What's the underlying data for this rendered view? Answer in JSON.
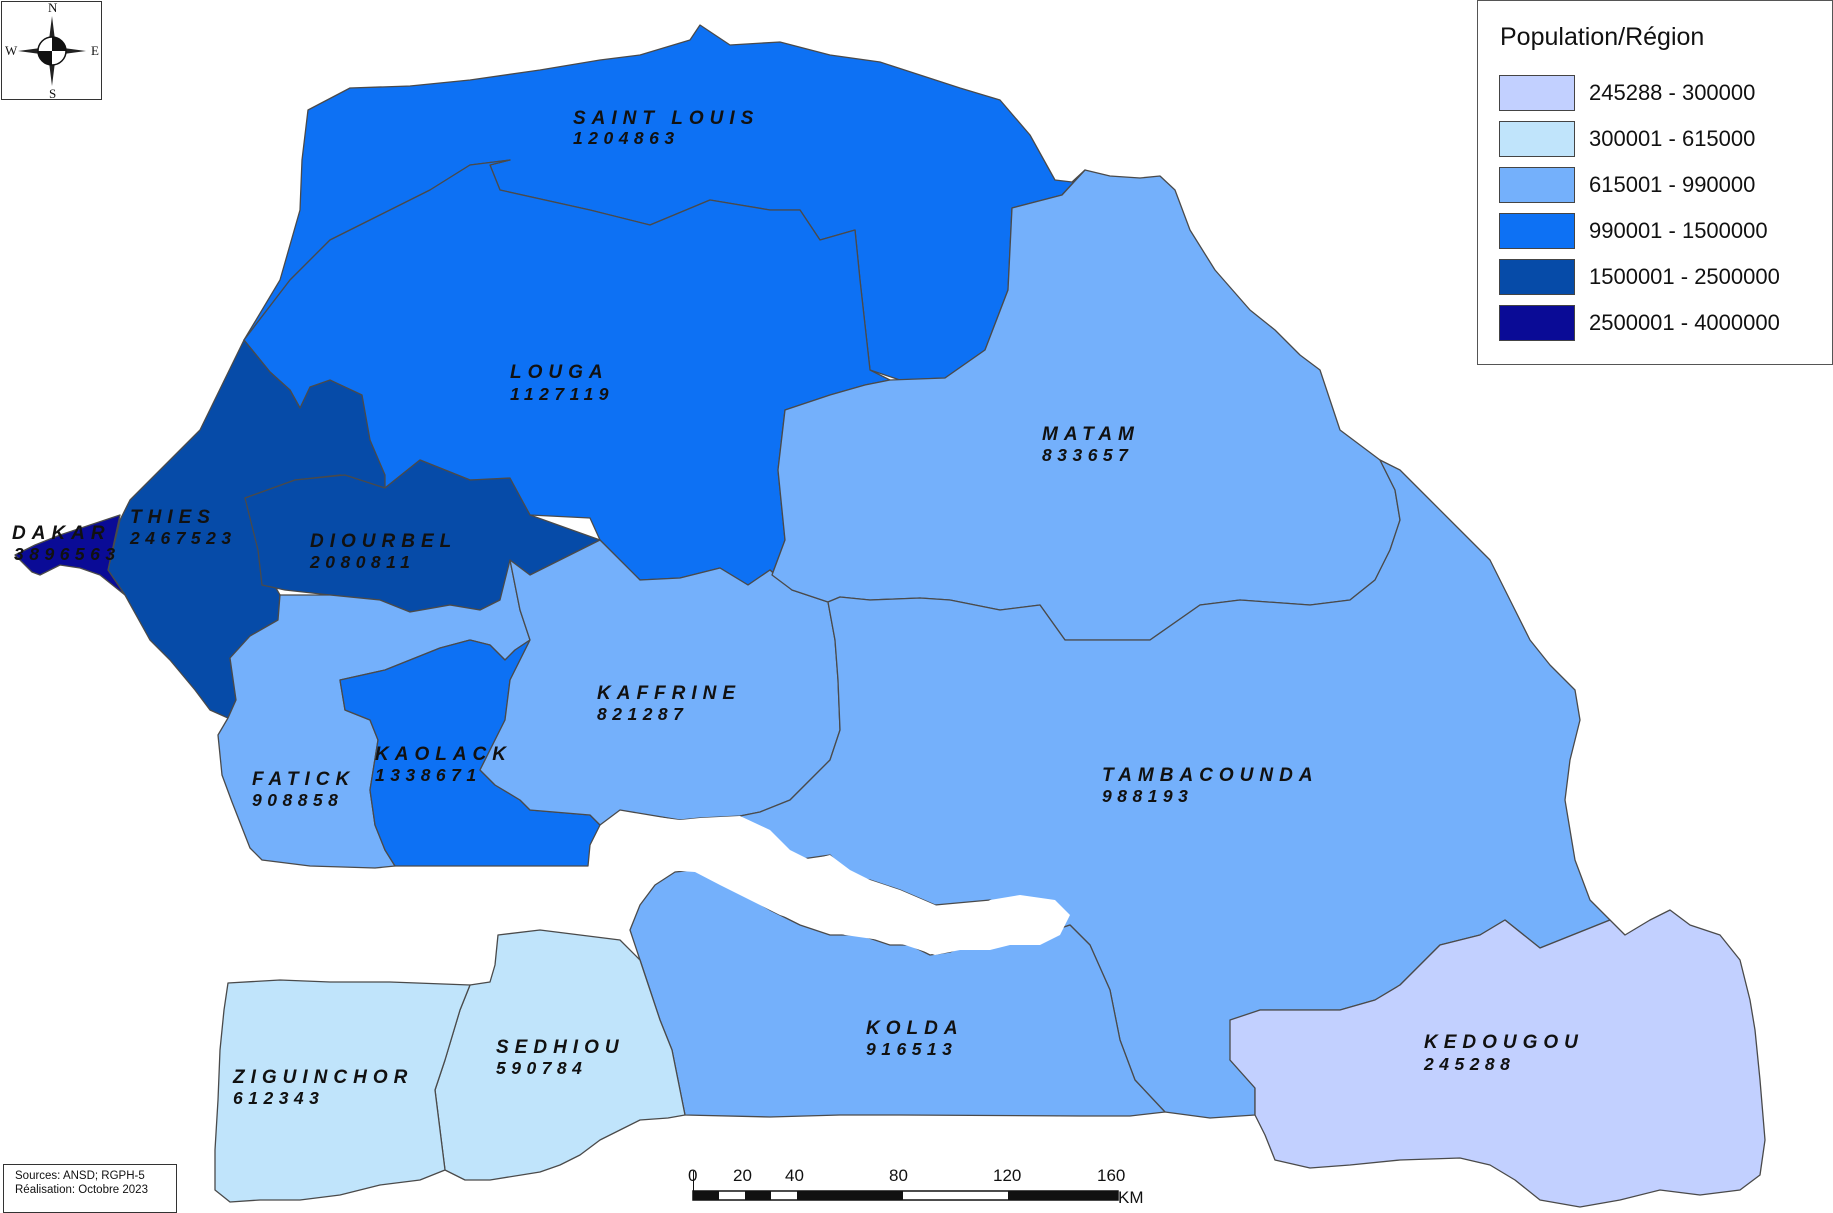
{
  "compass": {
    "north": "N",
    "south": "S",
    "east": "E",
    "west": "W"
  },
  "legend": {
    "title": "Population/Région",
    "classes": [
      {
        "label": "245288 - 300000",
        "color": "#c2d0ff"
      },
      {
        "label": "300001 - 615000",
        "color": "#c0e4fb"
      },
      {
        "label": "615001 - 990000",
        "color": "#74b0fb"
      },
      {
        "label": "990001 - 1500000",
        "color": "#0d71f4"
      },
      {
        "label": "1500001 - 2500000",
        "color": "#064ba8"
      },
      {
        "label": "2500001 - 4000000",
        "color": "#0a0b96"
      }
    ]
  },
  "regions": {
    "saint_louis": {
      "name": "SAINT LOUIS",
      "population": "1204863",
      "color": "#0d71f4"
    },
    "louga": {
      "name": "LOUGA",
      "population": "1127119",
      "color": "#0d71f4"
    },
    "matam": {
      "name": "MATAM",
      "population": "833657",
      "color": "#74b0fb"
    },
    "thies": {
      "name": "THIES",
      "population": "2467523",
      "color": "#064ba8"
    },
    "dakar": {
      "name": "DAKAR",
      "population": "3896563",
      "color": "#0a0b96"
    },
    "diourbel": {
      "name": "DIOURBEL",
      "population": "2080811",
      "color": "#064ba8"
    },
    "kaffrine": {
      "name": "KAFFRINE",
      "population": "821287",
      "color": "#74b0fb"
    },
    "kaolack": {
      "name": "KAOLACK",
      "population": "1338671",
      "color": "#0d71f4"
    },
    "fatick": {
      "name": "FATICK",
      "population": "908858",
      "color": "#74b0fb"
    },
    "tambacounda": {
      "name": "TAMBACOUNDA",
      "population": "988193",
      "color": "#74b0fb"
    },
    "kolda": {
      "name": "KOLDA",
      "population": "916513",
      "color": "#74b0fb"
    },
    "sedhiou": {
      "name": "SEDHIOU",
      "population": "590784",
      "color": "#c0e4fb"
    },
    "ziguinchor": {
      "name": "ZIGUINCHOR",
      "population": "612343",
      "color": "#c0e4fb"
    },
    "kedougou": {
      "name": "KEDOUGOU",
      "population": "245288",
      "color": "#c2d0ff"
    }
  },
  "sources": {
    "line1": "Sources: ANSD; RGPH-5",
    "line2": "Réalisation: Octobre 2023"
  },
  "scale": {
    "ticks": [
      "0",
      "20",
      "40",
      "80",
      "120",
      "160"
    ],
    "unit": "KM"
  }
}
